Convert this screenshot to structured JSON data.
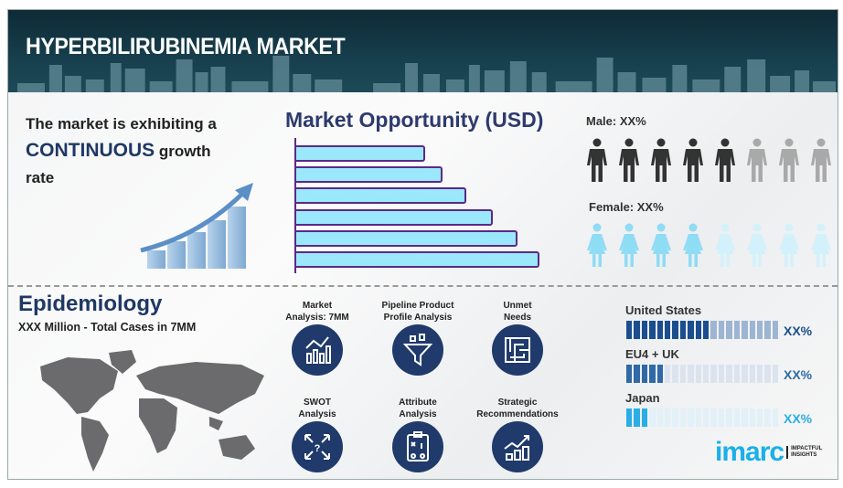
{
  "header": {
    "title": "HYPERBILIRUBINEMIA MARKET"
  },
  "growth": {
    "line1": "The market is exhibiting a",
    "highlight": "CONTINUOUS",
    "line2_rest": "growth",
    "line3": "rate"
  },
  "market_opportunity": {
    "title": "Market Opportunity (USD)",
    "bar_relative_lengths_pct": [
      53,
      60,
      70,
      81,
      91,
      100
    ],
    "bar_fill": "#9be7fb",
    "bar_border": "#5b2a86"
  },
  "gender": {
    "male": {
      "label": "Male: XX%",
      "highlighted": 5,
      "total": 8,
      "color": "#333333",
      "muted_color": "#a9a9a9"
    },
    "female": {
      "label": "Female: XX%",
      "highlighted": 4,
      "total": 8,
      "color": "#8fdcf5",
      "muted_color": "#d3f1fb"
    }
  },
  "epidemiology": {
    "title": "Epidemiology",
    "subtitle": "XXX Million - Total Cases in 7MM"
  },
  "services": [
    {
      "label1": "Market",
      "label2": "Analysis: 7MM",
      "icon": "bar-line-chart-icon"
    },
    {
      "label1": "Pipeline Product",
      "label2": "Profile Analysis",
      "icon": "funnel-icon"
    },
    {
      "label1": "Unmet",
      "label2": "Needs",
      "icon": "maze-icon"
    },
    {
      "label1": "SWOT",
      "label2": "Analysis",
      "icon": "swot-arrows-icon"
    },
    {
      "label1": "Attribute",
      "label2": "Analysis",
      "icon": "clipboard-strategy-icon"
    },
    {
      "label1": "Strategic",
      "label2": "Recommendations",
      "icon": "growth-chart-icon"
    }
  ],
  "regions": [
    {
      "name": "United States",
      "value": "XX%",
      "filled_segments": 11,
      "total_segments": 20,
      "color": "#1a4e8f",
      "muted": "#9db5d3",
      "text_color": "#1a4e8f"
    },
    {
      "name": "EU4 + UK",
      "value": "XX%",
      "filled_segments": 5,
      "total_segments": 20,
      "color": "#2f6aa6",
      "muted": "#dbe4ee",
      "text_color": "#2f6aa6"
    },
    {
      "name": "Japan",
      "value": "XX%",
      "filled_segments": 3,
      "total_segments": 20,
      "color": "#29aee6",
      "muted": "#e2f0f8",
      "text_color": "#29aee6"
    }
  ],
  "logo": {
    "word": "imarc",
    "tagline": "IMPACTFUL INSIGHTS"
  }
}
